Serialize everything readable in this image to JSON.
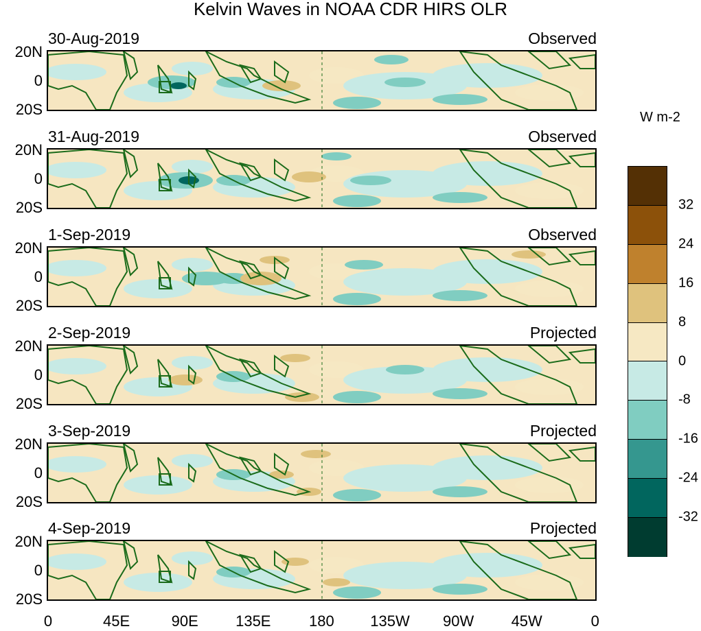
{
  "title": "Kelvin Waves in NOAA CDR HIRS OLR",
  "panels": [
    {
      "date": "30-Aug-2019",
      "status": "Observed"
    },
    {
      "date": "31-Aug-2019",
      "status": "Observed"
    },
    {
      "date": "1-Sep-2019",
      "status": "Observed"
    },
    {
      "date": "2-Sep-2019",
      "status": "Projected"
    },
    {
      "date": "3-Sep-2019",
      "status": "Projected"
    },
    {
      "date": "4-Sep-2019",
      "status": "Projected"
    }
  ],
  "lat_labels": [
    "20N",
    "0",
    "20S"
  ],
  "lon_labels": [
    "0",
    "45E",
    "90E",
    "135E",
    "180",
    "135W",
    "90W",
    "45W",
    "0"
  ],
  "legend": {
    "unit": "W m-2",
    "levels": [
      "32",
      "24",
      "16",
      "8",
      "0",
      "-8",
      "-16",
      "-24",
      "-32"
    ],
    "colors": [
      "#543005",
      "#8c510a",
      "#bf812d",
      "#dfc27d",
      "#f6e8c3",
      "#c7eae5",
      "#80cdc1",
      "#35978f",
      "#01665e",
      "#003c30"
    ]
  }
}
